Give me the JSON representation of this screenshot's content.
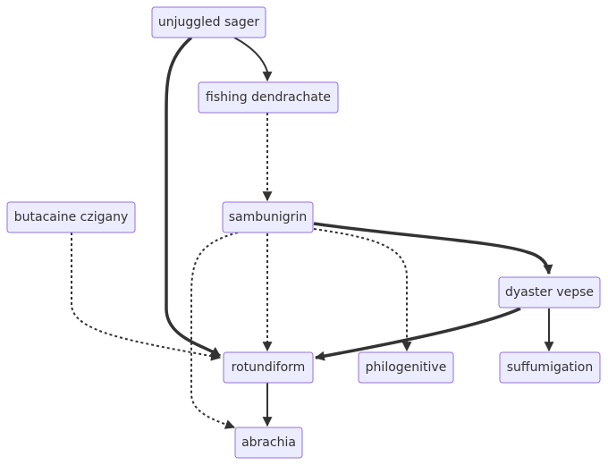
{
  "diagram": {
    "type": "flowchart",
    "colors": {
      "node_fill": "#ececff",
      "node_stroke": "#9370db",
      "edge": "#333333",
      "text": "#333333"
    },
    "nodes": [
      {
        "id": "unjuggled_sager",
        "label": "unjuggled sager"
      },
      {
        "id": "fishing_dendrachate",
        "label": "fishing dendrachate"
      },
      {
        "id": "butacaine_czigany",
        "label": "butacaine czigany"
      },
      {
        "id": "sambunigrin",
        "label": "sambunigrin"
      },
      {
        "id": "dyaster_vepse",
        "label": "dyaster vepse"
      },
      {
        "id": "rotundiform",
        "label": "rotundiform"
      },
      {
        "id": "philogenitive",
        "label": "philogenitive"
      },
      {
        "id": "suffumigation",
        "label": "suffumigation"
      },
      {
        "id": "abrachia",
        "label": "abrachia"
      }
    ],
    "edges": [
      {
        "from": "unjuggled_sager",
        "to": "fishing_dendrachate",
        "style": "normal"
      },
      {
        "from": "unjuggled_sager",
        "to": "rotundiform",
        "style": "thick"
      },
      {
        "from": "fishing_dendrachate",
        "to": "sambunigrin",
        "style": "dotted"
      },
      {
        "from": "butacaine_czigany",
        "to": "rotundiform",
        "style": "dotted"
      },
      {
        "from": "sambunigrin",
        "to": "dyaster_vepse",
        "style": "thick"
      },
      {
        "from": "sambunigrin",
        "to": "rotundiform",
        "style": "dotted"
      },
      {
        "from": "sambunigrin",
        "to": "philogenitive",
        "style": "dotted"
      },
      {
        "from": "sambunigrin",
        "to": "abrachia",
        "style": "dotted"
      },
      {
        "from": "dyaster_vepse",
        "to": "rotundiform",
        "style": "thick"
      },
      {
        "from": "dyaster_vepse",
        "to": "suffumigation",
        "style": "normal"
      },
      {
        "from": "rotundiform",
        "to": "abrachia",
        "style": "normal"
      }
    ]
  }
}
